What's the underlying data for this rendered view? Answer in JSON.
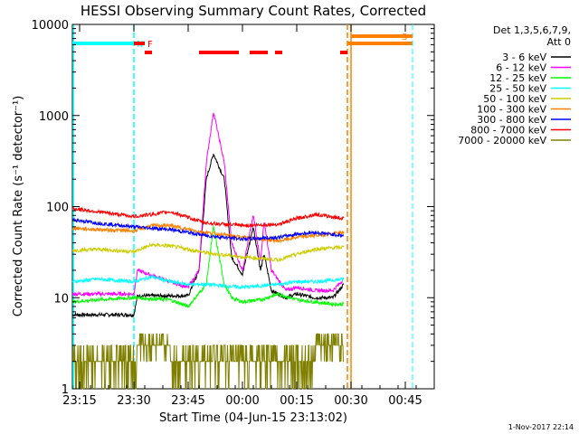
{
  "chart_data": {
    "type": "line",
    "title": "HESSI Observing Summary Count Rates, Corrected",
    "xlabel": "Start Time (04-Jun-15 23:13:02)",
    "ylabel": "Corrected Count Rate (s⁻¹ detector⁻¹)",
    "y_scale": "log",
    "ylim": [
      1,
      10000
    ],
    "xlim": [
      "23:13",
      "00:53"
    ],
    "x_ticks": [
      "23:15",
      "23:30",
      "23:45",
      "00:00",
      "00:15",
      "00:30",
      "00:45"
    ],
    "y_ticks": [
      "1",
      "10",
      "100",
      "1000",
      "10000"
    ],
    "legend_header": [
      "Det 1,3,5,6,7,9,",
      "Att 0"
    ],
    "legend_position": "right",
    "series": [
      {
        "name": "3 - 6 keV",
        "color": "#000000",
        "x": [
          "23:13",
          "23:30",
          "23:31",
          "23:40",
          "23:45",
          "23:48",
          "23:50",
          "23:52",
          "23:55",
          "23:57",
          "00:00",
          "00:03",
          "00:05",
          "00:06",
          "00:08",
          "00:12",
          "00:15",
          "00:20",
          "00:25",
          "00:28"
        ],
        "y": [
          6.5,
          6.5,
          10.5,
          10.5,
          10.5,
          20,
          200,
          380,
          200,
          28,
          18,
          60,
          20,
          30,
          12,
          10,
          11,
          10,
          10,
          14
        ]
      },
      {
        "name": "6 - 12 keV",
        "color": "#ff00ff",
        "x": [
          "23:13",
          "23:30",
          "23:31",
          "23:40",
          "23:45",
          "23:48",
          "23:50",
          "23:52",
          "23:55",
          "23:57",
          "00:00",
          "00:03",
          "00:05",
          "00:06",
          "00:08",
          "00:12",
          "00:15",
          "00:20",
          "00:25",
          "00:28"
        ],
        "y": [
          11,
          11,
          20,
          15,
          13,
          20,
          300,
          1100,
          300,
          40,
          20,
          80,
          25,
          70,
          20,
          12,
          13,
          12,
          12,
          16
        ]
      },
      {
        "name": "12 - 25 keV",
        "color": "#00ff00",
        "x": [
          "23:13",
          "23:20",
          "23:30",
          "23:40",
          "23:45",
          "23:50",
          "23:52",
          "23:55",
          "23:57",
          "00:00",
          "00:05",
          "00:10",
          "00:15",
          "00:20",
          "00:25",
          "00:28"
        ],
        "y": [
          9,
          9.5,
          10,
          9.5,
          8,
          14,
          60,
          14,
          10,
          9,
          9.5,
          11,
          9.5,
          9,
          8.5,
          8.5
        ]
      },
      {
        "name": "25 - 50 keV",
        "color": "#00ffff",
        "x": [
          "23:13",
          "23:20",
          "23:30",
          "23:35",
          "23:40",
          "23:45",
          "23:50",
          "00:00",
          "00:10",
          "00:15",
          "00:20",
          "00:28"
        ],
        "y": [
          15,
          16,
          15,
          17,
          15,
          14,
          14,
          13,
          14,
          15,
          15,
          16
        ]
      },
      {
        "name": "50 - 100 keV",
        "color": "#cccc00",
        "x": [
          "23:13",
          "23:20",
          "23:30",
          "23:35",
          "23:40",
          "23:45",
          "23:50",
          "00:00",
          "00:10",
          "00:15",
          "00:20",
          "00:28"
        ],
        "y": [
          33,
          34,
          32,
          38,
          37,
          34,
          31,
          28,
          26,
          30,
          34,
          36
        ]
      },
      {
        "name": "100 - 300 keV",
        "color": "#ff8000",
        "x": [
          "23:13",
          "23:20",
          "23:30",
          "23:35",
          "23:40",
          "23:45",
          "23:50",
          "00:00",
          "00:10",
          "00:15",
          "00:20",
          "00:28"
        ],
        "y": [
          58,
          56,
          54,
          62,
          62,
          56,
          52,
          46,
          42,
          46,
          48,
          52
        ]
      },
      {
        "name": "300 - 800 keV",
        "color": "#0000ff",
        "x": [
          "23:13",
          "23:20",
          "23:30",
          "23:35",
          "23:40",
          "23:45",
          "23:50",
          "00:00",
          "00:10",
          "00:15",
          "00:20",
          "00:28"
        ],
        "y": [
          72,
          66,
          60,
          58,
          56,
          52,
          48,
          44,
          46,
          50,
          52,
          48
        ]
      },
      {
        "name": "800 - 7000 keV",
        "color": "#ff0000",
        "x": [
          "23:13",
          "23:20",
          "23:30",
          "23:35",
          "23:40",
          "23:45",
          "23:50",
          "00:00",
          "00:10",
          "00:15",
          "00:20",
          "00:28"
        ],
        "y": [
          95,
          88,
          78,
          82,
          88,
          76,
          66,
          62,
          64,
          74,
          82,
          74
        ]
      },
      {
        "name": "7000 - 20000 keV",
        "color": "#808000",
        "x": [
          "23:13",
          "23:30",
          "23:31",
          "23:40",
          "23:45",
          "23:52",
          "23:55",
          "00:05",
          "00:10",
          "00:20",
          "00:28"
        ],
        "y": [
          2,
          2,
          3,
          3,
          2,
          2,
          3,
          2,
          2,
          3,
          3
        ]
      }
    ],
    "flags": [
      {
        "label": "N",
        "color": "#00ffff",
        "x": [
          "23:13",
          "23:30"
        ],
        "line_at": "23:30"
      },
      {
        "label": "F",
        "color": "#ff0000",
        "x": [
          "23:30",
          "23:33"
        ]
      },
      {
        "label": "S",
        "color": "#ff8000",
        "x": [
          "00:29",
          "00:47"
        ],
        "line_at": "00:29"
      }
    ],
    "flare_segments": [
      [
        "23:33",
        "23:35"
      ],
      [
        "23:48",
        "23:59"
      ],
      [
        "00:02",
        "00:07"
      ],
      [
        "00:09",
        "00:11"
      ],
      [
        "00:27",
        "00:29"
      ]
    ],
    "night_segments": [
      [
        "23:13",
        "23:30"
      ],
      [
        "00:30",
        "00:47"
      ]
    ]
  },
  "timestamp": "1-Nov-2017 22:14"
}
